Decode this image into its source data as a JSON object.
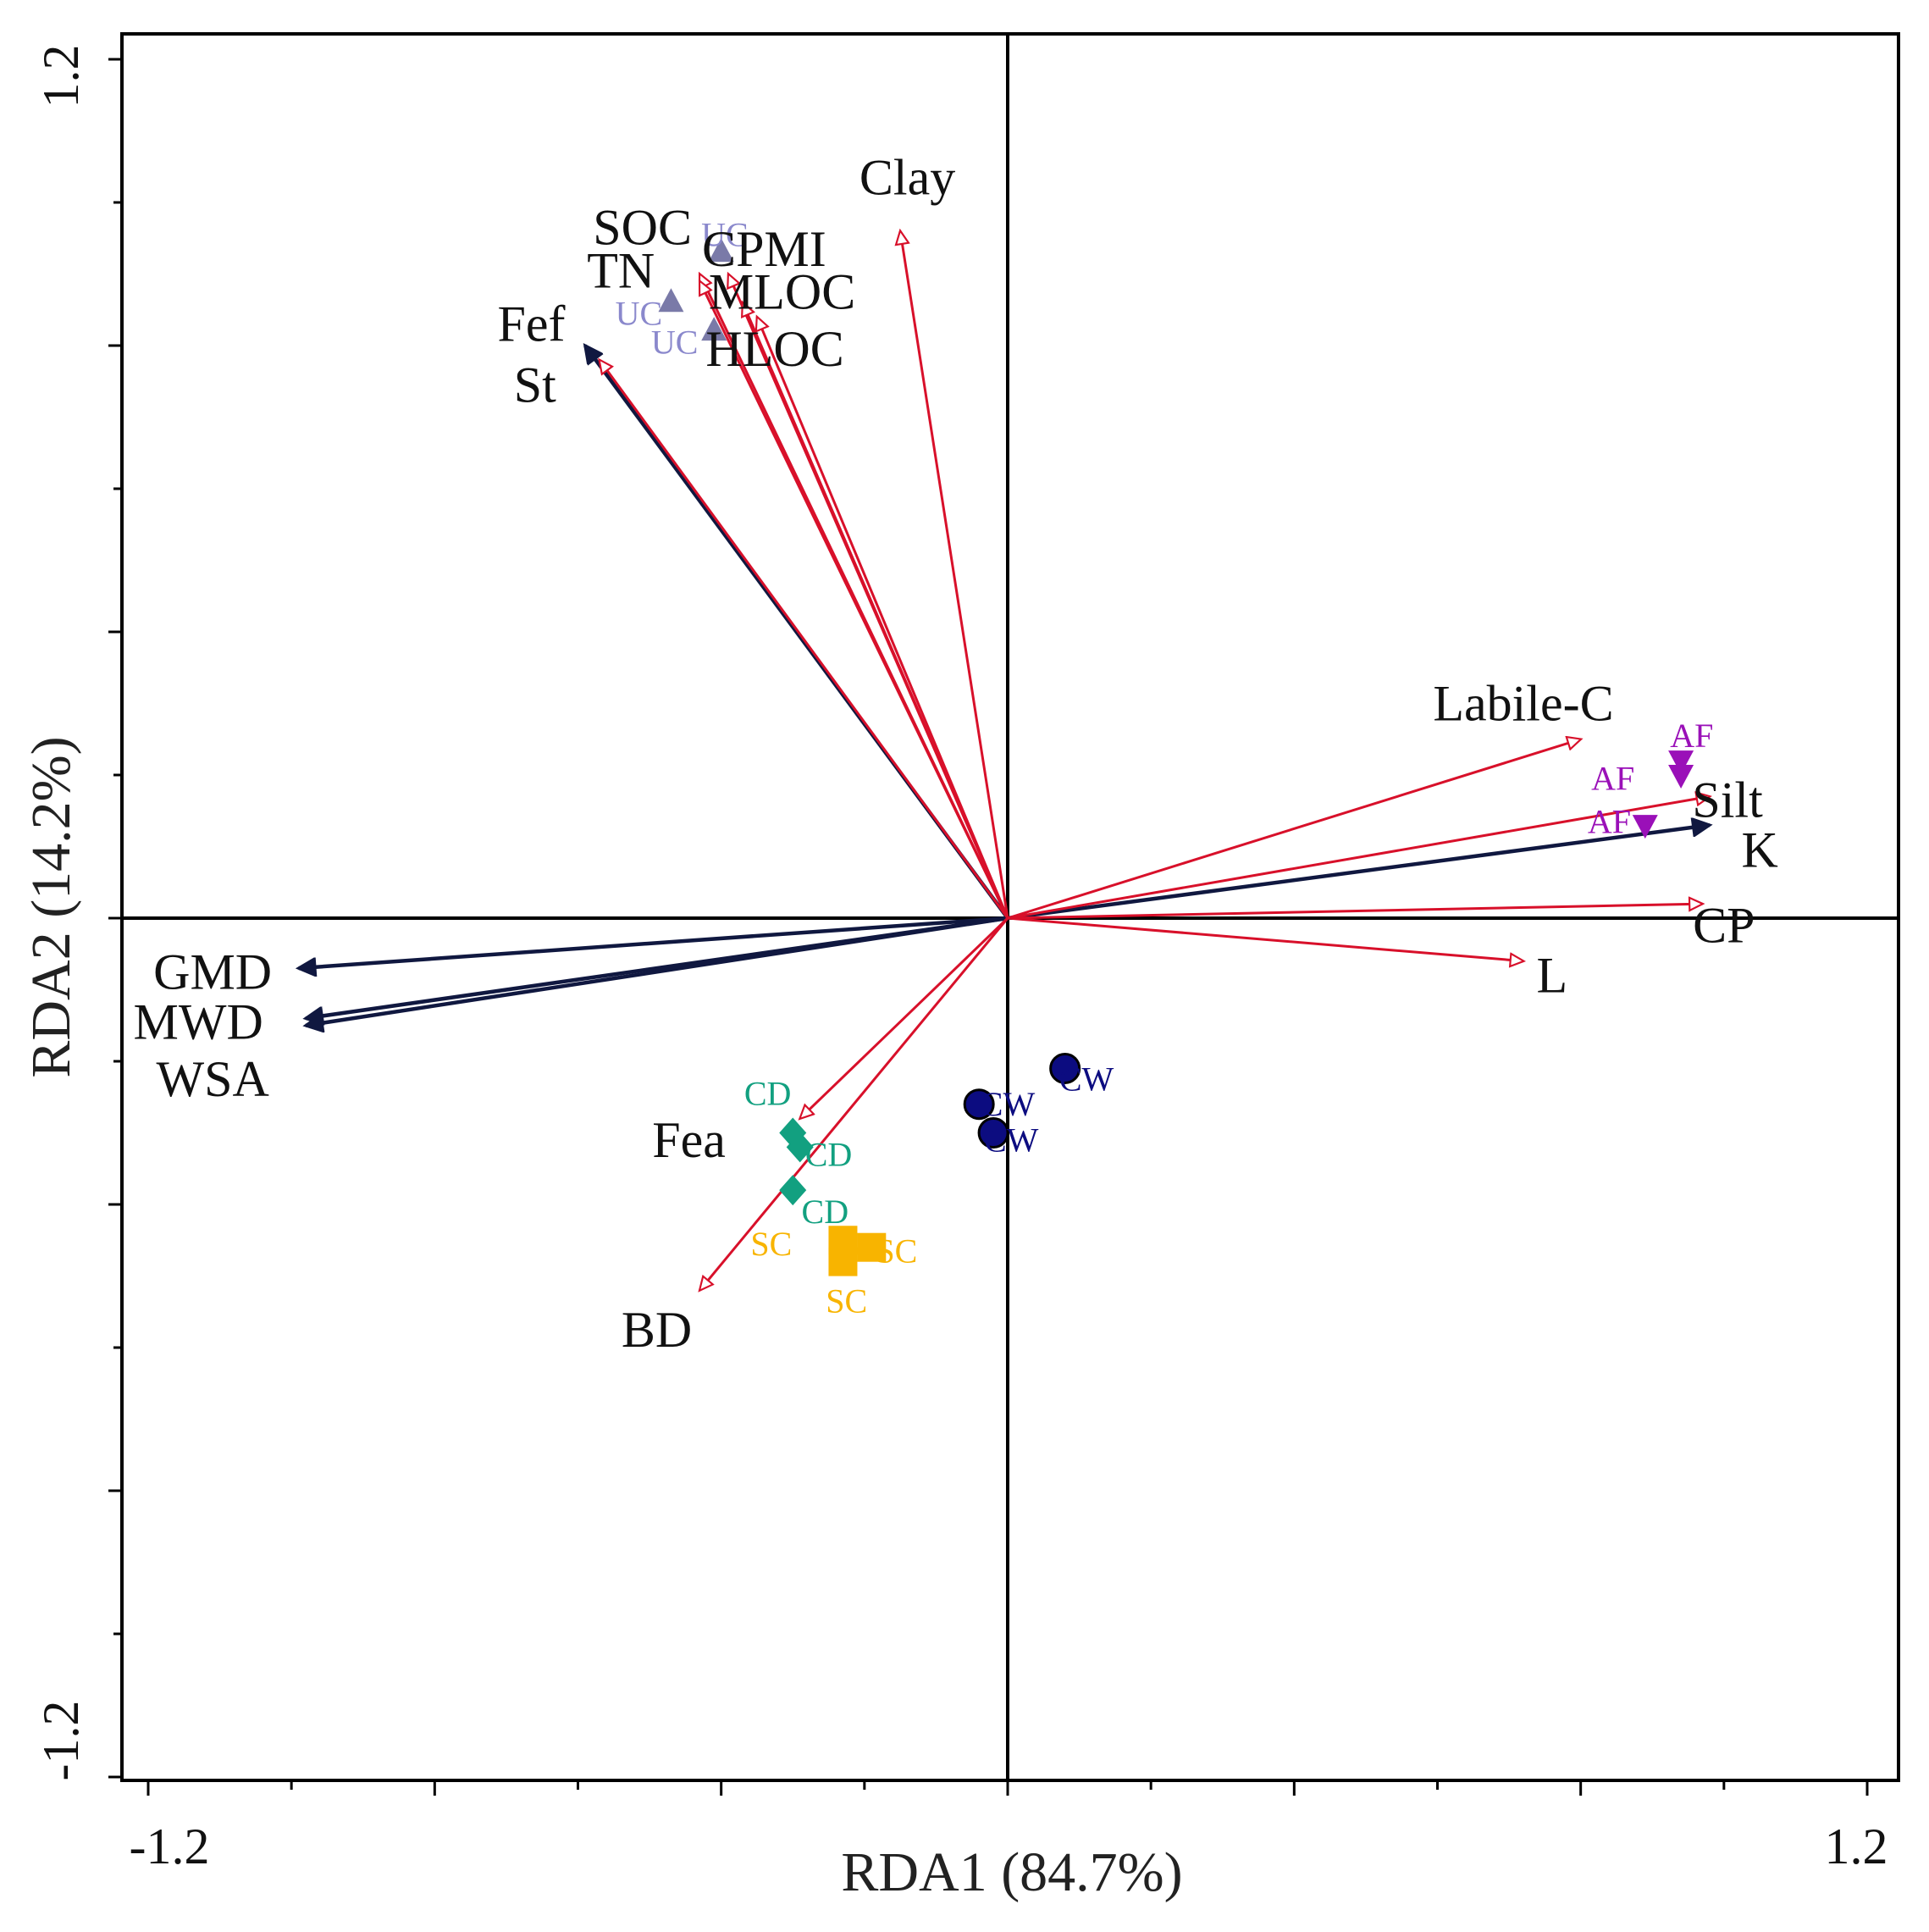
{
  "chart_data": {
    "type": "scatter",
    "subtype": "rda-biplot",
    "title": "",
    "xlabel": "RDA1 (84.7%)",
    "ylabel": "RDA2 (14.2%)",
    "xlim": [
      -1.2,
      1.2
    ],
    "ylim": [
      -1.2,
      1.2
    ],
    "x_tick_labels": [
      "-1.2",
      "1.2"
    ],
    "y_tick_labels": [
      "1.2",
      "-1.2"
    ],
    "colors": {
      "response_arrow": "#101840",
      "explanatory_arrow": "#d8102a",
      "axis": "#000000",
      "UC": "#7a7aa8",
      "UC_text": "#8a88cc",
      "AF": "#9a10b8",
      "CW": "#0c0c80",
      "CD": "#12a080",
      "SC": "#f8b400"
    },
    "response_arrows": [
      {
        "label": "Fef",
        "x": -0.59,
        "y": 0.8
      },
      {
        "label": "K",
        "x": 0.98,
        "y": 0.13
      },
      {
        "label": "GMD",
        "x": -0.99,
        "y": -0.07
      },
      {
        "label": "MWD",
        "x": -0.98,
        "y": -0.14
      },
      {
        "label": "WSA",
        "x": -0.98,
        "y": -0.15
      }
    ],
    "explanatory_arrows": [
      {
        "label": "Clay",
        "x": -0.15,
        "y": 0.96
      },
      {
        "label": "SOC",
        "x": -0.43,
        "y": 0.9
      },
      {
        "label": "TN",
        "x": -0.43,
        "y": 0.89
      },
      {
        "label": "CPMI",
        "x": -0.39,
        "y": 0.9
      },
      {
        "label": "MLOC",
        "x": -0.37,
        "y": 0.86
      },
      {
        "label": "HLOC",
        "x": -0.35,
        "y": 0.84
      },
      {
        "label": "St",
        "x": -0.57,
        "y": 0.78
      },
      {
        "label": "Labile-C",
        "x": 0.8,
        "y": 0.25
      },
      {
        "label": "Silt",
        "x": 0.98,
        "y": 0.17
      },
      {
        "label": "CP",
        "x": 0.97,
        "y": 0.02
      },
      {
        "label": "L",
        "x": 0.72,
        "y": -0.06
      },
      {
        "label": "Fea",
        "x": -0.29,
        "y": -0.28
      },
      {
        "label": "BD",
        "x": -0.43,
        "y": -0.52
      }
    ],
    "samples": [
      {
        "group": "UC",
        "x": -0.4,
        "y": 0.93
      },
      {
        "group": "UC",
        "x": -0.47,
        "y": 0.86
      },
      {
        "group": "UC",
        "x": -0.41,
        "y": 0.82
      },
      {
        "group": "AF",
        "x": 0.94,
        "y": 0.22
      },
      {
        "group": "AF",
        "x": 0.89,
        "y": 0.13
      },
      {
        "group": "AF",
        "x": 0.94,
        "y": 0.2
      },
      {
        "group": "CW",
        "x": 0.08,
        "y": -0.21
      },
      {
        "group": "CW",
        "x": -0.04,
        "y": -0.26
      },
      {
        "group": "CW",
        "x": -0.02,
        "y": -0.3
      },
      {
        "group": "CD",
        "x": -0.3,
        "y": -0.3
      },
      {
        "group": "CD",
        "x": -0.29,
        "y": -0.32
      },
      {
        "group": "CD",
        "x": -0.3,
        "y": -0.38
      },
      {
        "group": "SC",
        "x": -0.23,
        "y": -0.45
      },
      {
        "group": "SC",
        "x": -0.19,
        "y": -0.46
      },
      {
        "group": "SC",
        "x": -0.23,
        "y": -0.48
      }
    ],
    "sample_labels": [
      {
        "text": "UC",
        "group": "UC",
        "x": -0.395,
        "y": 0.955
      },
      {
        "text": "UC",
        "group": "UC",
        "x": -0.515,
        "y": 0.845
      },
      {
        "text": "UC",
        "group": "UC",
        "x": -0.465,
        "y": 0.805
      },
      {
        "text": "AF",
        "group": "AF",
        "x": 0.955,
        "y": 0.255
      },
      {
        "text": "AF",
        "group": "AF",
        "x": 0.845,
        "y": 0.195
      },
      {
        "text": "AF",
        "group": "AF",
        "x": 0.84,
        "y": 0.135
      },
      {
        "text": "CW",
        "group": "CW",
        "x": 0.11,
        "y": -0.225
      },
      {
        "text": "CW",
        "group": "CW",
        "x": 0.0,
        "y": -0.26
      },
      {
        "text": "CW",
        "group": "CW",
        "x": 0.005,
        "y": -0.31
      },
      {
        "text": "CD",
        "group": "CD",
        "x": -0.335,
        "y": -0.245
      },
      {
        "text": "CD",
        "group": "CD",
        "x": -0.25,
        "y": -0.33
      },
      {
        "text": "CD",
        "group": "CD",
        "x": -0.255,
        "y": -0.41
      },
      {
        "text": "SC",
        "group": "SC",
        "x": -0.33,
        "y": -0.455
      },
      {
        "text": "SC",
        "group": "SC",
        "x": -0.155,
        "y": -0.465
      },
      {
        "text": "SC",
        "group": "SC",
        "x": -0.225,
        "y": -0.535
      }
    ],
    "variable_labels": [
      {
        "text": "Clay",
        "x": -0.14,
        "y": 1.035
      },
      {
        "text": "SOC",
        "x": -0.51,
        "y": 0.965
      },
      {
        "text": "CPMI",
        "x": -0.34,
        "y": 0.935
      },
      {
        "text": "TN",
        "x": -0.54,
        "y": 0.905
      },
      {
        "text": "MLOC",
        "x": -0.315,
        "y": 0.875
      },
      {
        "text": "Fef",
        "x": -0.665,
        "y": 0.83
      },
      {
        "text": "HLOC",
        "x": -0.325,
        "y": 0.795
      },
      {
        "text": "St",
        "x": -0.66,
        "y": 0.745
      },
      {
        "text": "Labile-C",
        "x": 0.72,
        "y": 0.3
      },
      {
        "text": "Silt",
        "x": 1.005,
        "y": 0.165
      },
      {
        "text": "K",
        "x": 1.05,
        "y": 0.095
      },
      {
        "text": "CP",
        "x": 1.0,
        "y": -0.01
      },
      {
        "text": "L",
        "x": 0.76,
        "y": -0.08
      },
      {
        "text": "GMD",
        "x": -1.11,
        "y": -0.075
      },
      {
        "text": "MWD",
        "x": -1.13,
        "y": -0.145
      },
      {
        "text": "WSA",
        "x": -1.11,
        "y": -0.225
      },
      {
        "text": "Fea",
        "x": -0.445,
        "y": -0.31
      },
      {
        "text": "BD",
        "x": -0.49,
        "y": -0.575
      }
    ]
  }
}
